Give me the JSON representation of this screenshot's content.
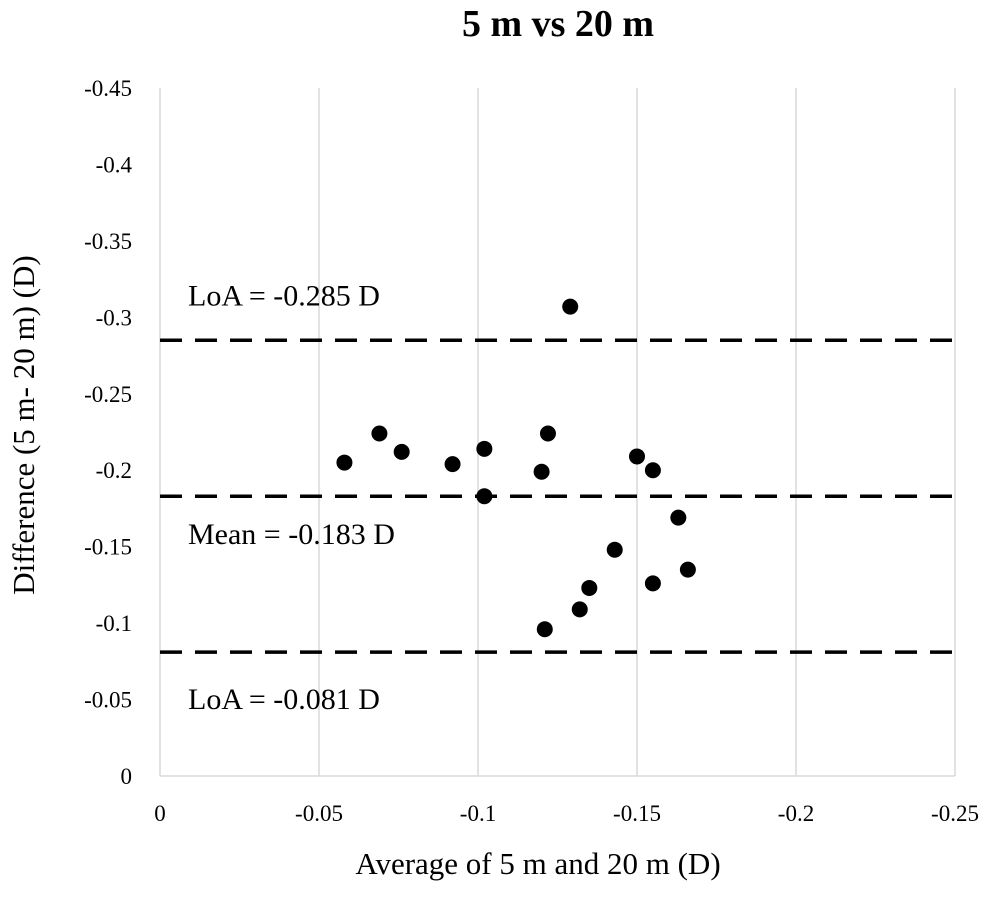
{
  "chart_data": {
    "type": "scatter",
    "title": "5 m vs 20 m",
    "xlabel": "Average of 5 m and 20 m (D)",
    "ylabel": "Difference (5 m- 20 m) (D)",
    "xlim": [
      0,
      -0.25
    ],
    "ylim": [
      0,
      -0.45
    ],
    "x_ticks": [
      "0",
      "-0.05",
      "-0.1",
      "-0.15",
      "-0.2",
      "-0.25"
    ],
    "x_tick_values": [
      0,
      -0.05,
      -0.1,
      -0.15,
      -0.2,
      -0.25
    ],
    "y_ticks": [
      "0",
      "-0.05",
      "-0.1",
      "-0.15",
      "-0.2",
      "-0.25",
      "-0.3",
      "-0.35",
      "-0.4",
      "-0.45"
    ],
    "y_tick_values": [
      0,
      -0.05,
      -0.1,
      -0.15,
      -0.2,
      -0.25,
      -0.3,
      -0.35,
      -0.4,
      -0.45
    ],
    "grid": "vertical",
    "reference_lines": [
      {
        "label": "LoA = -0.285  D",
        "y": -0.285
      },
      {
        "label": "Mean = -0.183  D",
        "y": -0.183
      },
      {
        "label": "LoA = -0.081  D",
        "y": -0.081
      }
    ],
    "points": [
      {
        "x": -0.058,
        "y": -0.205
      },
      {
        "x": -0.069,
        "y": -0.224
      },
      {
        "x": -0.076,
        "y": -0.212
      },
      {
        "x": -0.092,
        "y": -0.204
      },
      {
        "x": -0.102,
        "y": -0.214
      },
      {
        "x": -0.102,
        "y": -0.183
      },
      {
        "x": -0.12,
        "y": -0.199
      },
      {
        "x": -0.122,
        "y": -0.224
      },
      {
        "x": -0.129,
        "y": -0.307
      },
      {
        "x": -0.121,
        "y": -0.096
      },
      {
        "x": -0.132,
        "y": -0.109
      },
      {
        "x": -0.135,
        "y": -0.123
      },
      {
        "x": -0.143,
        "y": -0.148
      },
      {
        "x": -0.15,
        "y": -0.209
      },
      {
        "x": -0.155,
        "y": -0.2
      },
      {
        "x": -0.155,
        "y": -0.126
      },
      {
        "x": -0.163,
        "y": -0.169
      },
      {
        "x": -0.166,
        "y": -0.135
      }
    ]
  }
}
